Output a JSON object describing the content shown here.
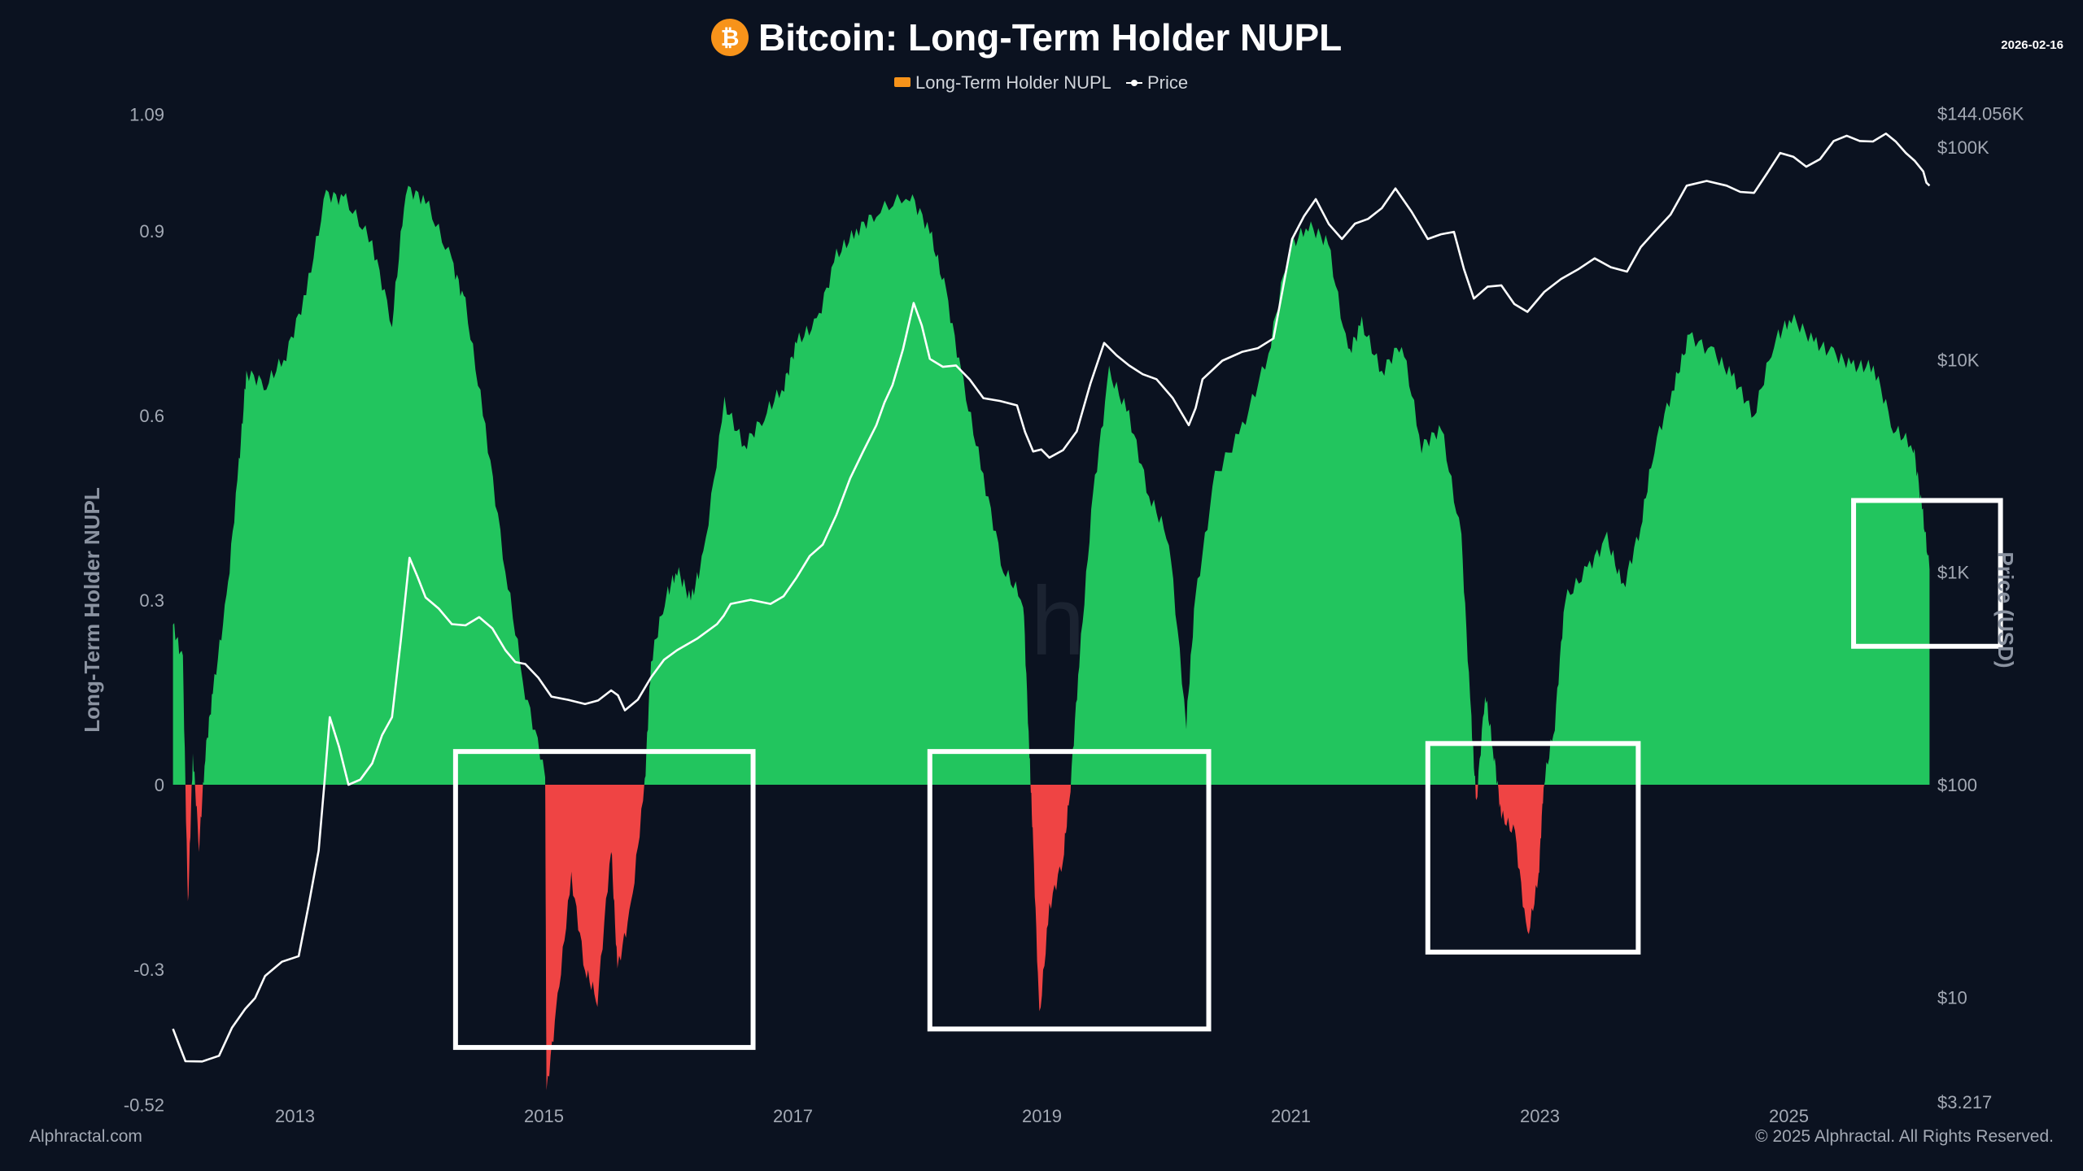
{
  "header": {
    "title": "Bitcoin: Long-Term Holder NUPL",
    "date": "2026-02-16",
    "logo_icon": "bitcoin-icon"
  },
  "footer": {
    "left": "Alphractal.com",
    "right": "© 2025 Alphractal. All Rights Reserved."
  },
  "colors": {
    "background": "#0b1220",
    "positive": "#22c55e",
    "negative": "#ef4444",
    "price": "#ffffff",
    "legend_nupl": "#f7931a",
    "bitcoin": "#f7931a",
    "annotation_box": "#ffffff"
  },
  "chart_data": {
    "type": "area",
    "title": "Bitcoin: Long-Term Holder NUPL",
    "legend": {
      "placement": "top-center",
      "entries": [
        "Long-Term Holder NUPL",
        "Price"
      ]
    },
    "ylabel": "Long-Term Holder NUPL",
    "y2label": "Price (USD)",
    "ylim": [
      -0.52,
      1.09
    ],
    "y2lim": [
      3.217,
      144056
    ],
    "y2scale": "log",
    "xlim": [
      2012.02,
      2026.13
    ],
    "grid": false,
    "y_ticks": [
      "1.09",
      "0.9",
      "0.6",
      "0.3",
      "0",
      "-0.3",
      "-0.52"
    ],
    "y_tick_values": [
      1.09,
      0.9,
      0.6,
      0.3,
      0,
      -0.3,
      -0.52
    ],
    "y2_ticks": [
      "$144.056K",
      "$100K",
      "$10K",
      "$1K",
      "$100",
      "$10",
      "$3.217"
    ],
    "y2_tick_values": [
      144056,
      100000,
      10000,
      1000,
      100,
      10,
      3.217
    ],
    "x_ticks": [
      "2013",
      "2015",
      "2017",
      "2019",
      "2021",
      "2023",
      "2025"
    ],
    "x_tick_values": [
      2013,
      2015,
      2017,
      2019,
      2021,
      2023,
      2025
    ],
    "series": [
      {
        "name": "Long-Term Holder NUPL",
        "axis": "left",
        "x": [
          2012.02,
          2012.1,
          2012.14,
          2012.18,
          2012.23,
          2012.28,
          2012.34,
          2012.45,
          2012.55,
          2012.61,
          2012.77,
          2012.93,
          2013.09,
          2013.25,
          2013.41,
          2013.62,
          2013.78,
          2013.89,
          2014.05,
          2014.26,
          2014.37,
          2014.53,
          2014.69,
          2014.85,
          2015.01,
          2015.02,
          2015.11,
          2015.22,
          2015.33,
          2015.43,
          2015.54,
          2015.59,
          2015.7,
          2015.81,
          2015.86,
          2015.97,
          2016.07,
          2016.18,
          2016.28,
          2016.45,
          2016.61,
          2016.77,
          2016.93,
          2017.03,
          2017.19,
          2017.35,
          2017.51,
          2017.67,
          2017.94,
          2018.1,
          2018.23,
          2018.37,
          2018.53,
          2018.69,
          2018.85,
          2018.9,
          2018.93,
          2018.98,
          2019.06,
          2019.17,
          2019.23,
          2019.3,
          2019.41,
          2019.54,
          2019.7,
          2019.86,
          2020.02,
          2020.16,
          2020.23,
          2020.39,
          2020.61,
          2020.82,
          2020.98,
          2021.14,
          2021.3,
          2021.46,
          2021.57,
          2021.73,
          2021.89,
          2022.05,
          2022.21,
          2022.37,
          2022.45,
          2022.49,
          2022.56,
          2022.63,
          2022.69,
          2022.8,
          2022.9,
          2022.99,
          2023.03,
          2023.12,
          2023.2,
          2023.38,
          2023.54,
          2023.67,
          2023.81,
          2023.92,
          2024.08,
          2024.2,
          2024.4,
          2024.56,
          2024.72,
          2024.88,
          2025.02,
          2025.2,
          2025.36,
          2025.52,
          2025.68,
          2025.84,
          2026.0,
          2026.07,
          2026.13
        ],
        "values": [
          0.26,
          0.2,
          -0.2,
          0.05,
          -0.1,
          0.05,
          0.15,
          0.3,
          0.52,
          0.67,
          0.65,
          0.7,
          0.8,
          0.96,
          0.95,
          0.88,
          0.75,
          0.97,
          0.95,
          0.85,
          0.78,
          0.58,
          0.35,
          0.15,
          0.02,
          -0.5,
          -0.35,
          -0.15,
          -0.3,
          -0.35,
          -0.1,
          -0.3,
          -0.2,
          0.0,
          0.2,
          0.3,
          0.35,
          0.3,
          0.37,
          0.62,
          0.55,
          0.6,
          0.65,
          0.72,
          0.75,
          0.86,
          0.9,
          0.93,
          0.96,
          0.9,
          0.8,
          0.65,
          0.5,
          0.35,
          0.3,
          0.05,
          -0.1,
          -0.38,
          -0.2,
          -0.12,
          0.0,
          0.2,
          0.47,
          0.67,
          0.6,
          0.47,
          0.4,
          0.1,
          0.3,
          0.5,
          0.58,
          0.7,
          0.87,
          0.91,
          0.88,
          0.7,
          0.75,
          0.67,
          0.72,
          0.55,
          0.58,
          0.4,
          0.1,
          -0.03,
          0.15,
          0.05,
          -0.05,
          -0.08,
          -0.25,
          -0.15,
          0.0,
          0.1,
          0.3,
          0.35,
          0.4,
          0.32,
          0.42,
          0.55,
          0.65,
          0.73,
          0.7,
          0.66,
          0.6,
          0.72,
          0.76,
          0.72,
          0.7,
          0.68,
          0.68,
          0.58,
          0.55,
          0.45,
          0.35
        ]
      },
      {
        "name": "Price",
        "axis": "right",
        "x": [
          2012.02,
          2012.12,
          2012.39,
          2012.6,
          2012.76,
          2013.03,
          2013.19,
          2013.28,
          2013.43,
          2013.62,
          2013.78,
          2013.92,
          2014.05,
          2014.26,
          2014.48,
          2014.69,
          2014.85,
          2015.06,
          2015.33,
          2015.54,
          2015.65,
          2015.86,
          2016.07,
          2016.39,
          2016.5,
          2016.82,
          2017.03,
          2017.24,
          2017.46,
          2017.67,
          2017.8,
          2017.97,
          2018.1,
          2018.31,
          2018.53,
          2018.8,
          2018.93,
          2019.06,
          2019.28,
          2019.5,
          2019.7,
          2019.92,
          2020.18,
          2020.29,
          2020.61,
          2020.86,
          2021.01,
          2021.2,
          2021.41,
          2021.62,
          2021.84,
          2022.1,
          2022.31,
          2022.47,
          2022.69,
          2022.9,
          2023.17,
          2023.44,
          2023.7,
          2023.92,
          2024.18,
          2024.5,
          2024.72,
          2024.93,
          2025.14,
          2025.36,
          2025.57,
          2025.78,
          2025.94,
          2026.08,
          2026.13
        ],
        "values": [
          7.1,
          5,
          5.3,
          8.8,
          12.6,
          15.6,
          49,
          208,
          100,
          126,
          208,
          1170,
          760,
          570,
          615,
          430,
          370,
          260,
          240,
          278,
          224,
          320,
          430,
          570,
          710,
          710,
          945,
          1350,
          2770,
          4920,
          7600,
          18500,
          10100,
          9400,
          6600,
          6100,
          3700,
          3460,
          4600,
          12000,
          9400,
          8100,
          4920,
          8100,
          10900,
          12600,
          37000,
          57000,
          37000,
          46000,
          64000,
          37000,
          40000,
          19400,
          22400,
          16800,
          24000,
          30000,
          26000,
          40000,
          66000,
          66000,
          61000,
          94000,
          81000,
          107000,
          107000,
          116000,
          94000,
          77000,
          66000
        ]
      }
    ],
    "annotations": [
      {
        "type": "box",
        "x": [
          2014.29,
          2016.68
        ],
        "y": [
          0.054,
          -0.427
        ]
      },
      {
        "type": "box",
        "x": [
          2018.1,
          2020.34
        ],
        "y": [
          0.054,
          -0.397
        ]
      },
      {
        "type": "box",
        "x": [
          2022.1,
          2023.79
        ],
        "y": [
          0.067,
          -0.272
        ]
      },
      {
        "type": "box",
        "x": [
          2025.52,
          2026.7
        ],
        "y": [
          0.462,
          0.225
        ]
      }
    ]
  }
}
